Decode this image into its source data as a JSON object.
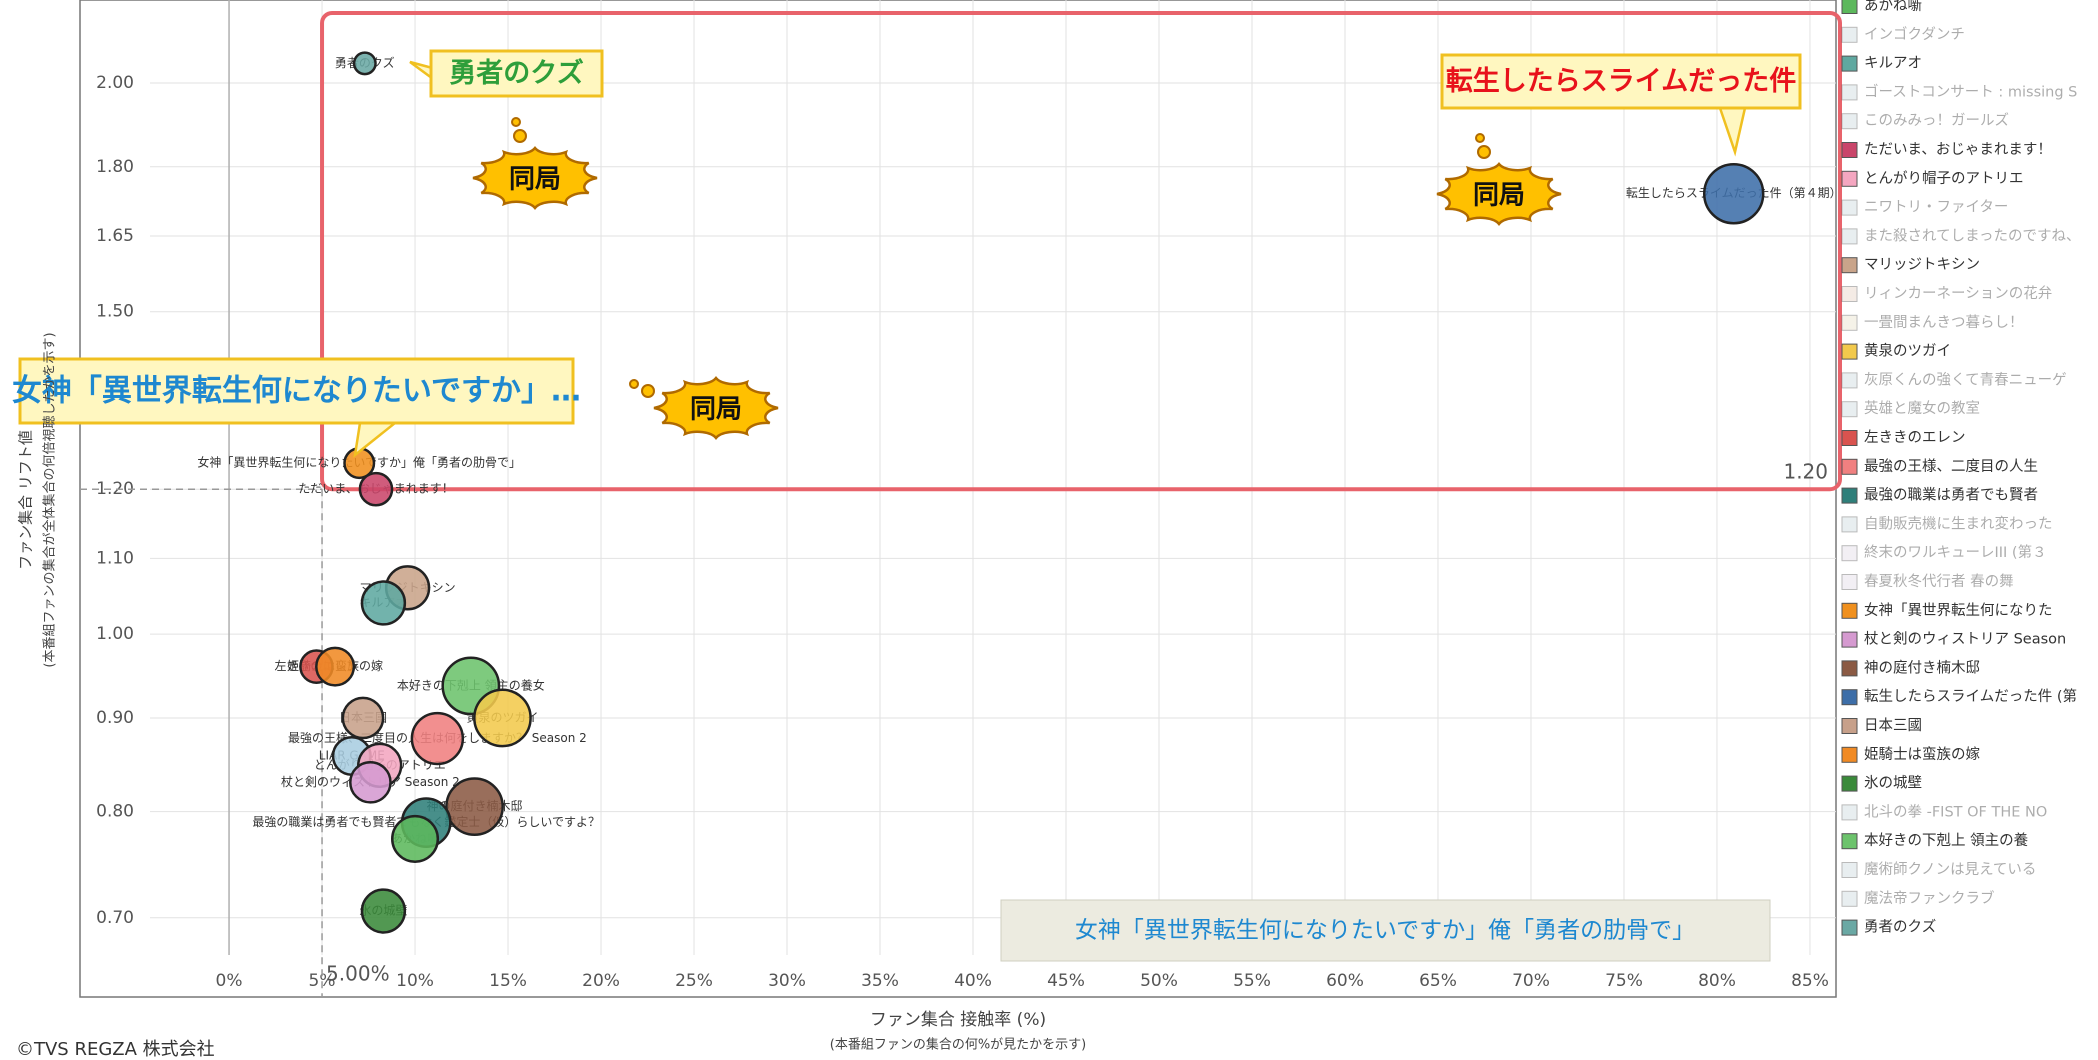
{
  "chart_data": {
    "type": "bubble",
    "x_label": "ファン集合 接触率 (%)",
    "x_sublabel": "(本番組ファンの集合の何%が見たかを示す)",
    "y_label": "ファン集合 リフト値",
    "y_sublabel": "(本番組ファンの集合が全体集合の何倍視聴したかを示す)",
    "footer": "©TVS REGZA 株式会社",
    "log_y": true,
    "grid": true,
    "xlim": [
      -4.25,
      86.4
    ],
    "ylim": [
      0.668,
      2.22
    ],
    "xticks": [
      {
        "value": 0,
        "label": "0%"
      },
      {
        "value": 5,
        "label": "5%"
      },
      {
        "value": 10,
        "label": "10%"
      },
      {
        "value": 15,
        "label": "15%"
      },
      {
        "value": 20,
        "label": "20%"
      },
      {
        "value": 25,
        "label": "25%"
      },
      {
        "value": 30,
        "label": "30%"
      },
      {
        "value": 35,
        "label": "35%"
      },
      {
        "value": 40,
        "label": "40%"
      },
      {
        "value": 45,
        "label": "45%"
      },
      {
        "value": 50,
        "label": "50%"
      },
      {
        "value": 55,
        "label": "55%"
      },
      {
        "value": 60,
        "label": "60%"
      },
      {
        "value": 65,
        "label": "65%"
      },
      {
        "value": 70,
        "label": "70%"
      },
      {
        "value": 75,
        "label": "75%"
      },
      {
        "value": 80,
        "label": "80%"
      },
      {
        "value": 85,
        "label": "85%"
      }
    ],
    "yticks": [
      {
        "value": 2,
        "label": "2.00"
      },
      {
        "value": 1.8,
        "label": "1.80"
      },
      {
        "value": 1.65,
        "label": "1.65"
      },
      {
        "value": 1.5,
        "label": "1.50"
      },
      {
        "value": 1.2,
        "label": "1.20"
      },
      {
        "value": 1.1,
        "label": "1.10"
      },
      {
        "value": 1,
        "label": "1.00"
      },
      {
        "value": 0.9,
        "label": "0.90"
      },
      {
        "value": 0.8,
        "label": "0.80"
      },
      {
        "value": 0.7,
        "label": "0.70"
      }
    ],
    "reference_lines": {
      "x": 5,
      "x_label": "5.00%",
      "y": 1.2,
      "y_label": "1.20"
    },
    "series": [
      {
        "name": "勇者のクズ",
        "color": "#6aa8a4",
        "x": [
          7.3
        ],
        "values": [
          2.05
        ],
        "sizes": [
          8
        ]
      },
      {
        "name": "転生したらスライムだった件（第４期）",
        "color": "#3d6ea8",
        "x": [
          80.9
        ],
        "values": [
          1.74
        ],
        "sizes": [
          22
        ]
      },
      {
        "name": "女神「異世界転生何になりたいですか」俺「勇者の肋骨で」",
        "color": "#f0901e",
        "x": [
          7.0
        ],
        "values": [
          1.24
        ],
        "sizes": [
          11
        ]
      },
      {
        "name": "ただいま、おじゃまれます！",
        "color": "#c9456a",
        "x": [
          7.9
        ],
        "values": [
          1.2
        ],
        "sizes": [
          12
        ]
      },
      {
        "name": "マリッジトキシン",
        "color": "#c9a48a",
        "x": [
          9.6
        ],
        "values": [
          1.06
        ],
        "sizes": [
          16
        ]
      },
      {
        "name": "キルアオ",
        "color": "#5fa8a0",
        "x": [
          8.3
        ],
        "values": [
          1.04
        ],
        "sizes": [
          16
        ]
      },
      {
        "name": "左ききのエレン",
        "color": "#d9534f",
        "x": [
          4.7
        ],
        "values": [
          0.96
        ],
        "sizes": [
          12
        ]
      },
      {
        "name": "姫騎士は蛮族の嫁",
        "color": "#f08a24",
        "x": [
          5.7
        ],
        "values": [
          0.96
        ],
        "sizes": [
          14
        ]
      },
      {
        "name": "本好きの下剋上 領主の養女",
        "color": "#6cc36c",
        "x": [
          13.0
        ],
        "values": [
          0.937
        ],
        "sizes": [
          21
        ]
      },
      {
        "name": "黄泉のツガイ",
        "color": "#f2c94c",
        "x": [
          14.7
        ],
        "values": [
          0.9
        ],
        "sizes": [
          21
        ]
      },
      {
        "name": "日本三國",
        "color": "#c7a08a",
        "x": [
          7.2
        ],
        "values": [
          0.9
        ],
        "sizes": [
          15
        ]
      },
      {
        "name": "最強の王様、二度目の人生は何をしますか？ Season 2",
        "color": "#f08080",
        "x": [
          11.2
        ],
        "values": [
          0.877
        ],
        "sizes": [
          19
        ]
      },
      {
        "name": "LIAR GAME",
        "color": "#a9cde0",
        "x": [
          6.6
        ],
        "values": [
          0.858
        ],
        "sizes": [
          14
        ]
      },
      {
        "name": "とんがり帽子のアトリエ",
        "color": "#f4a6c0",
        "x": [
          8.1
        ],
        "values": [
          0.848
        ],
        "sizes": [
          16
        ]
      },
      {
        "name": "杖と剣のウィストリア Season 2",
        "color": "#d59ad0",
        "x": [
          7.6
        ],
        "values": [
          0.83
        ],
        "sizes": [
          15
        ]
      },
      {
        "name": "神の庭付き楠木邸",
        "color": "#8b5a44",
        "x": [
          13.2
        ],
        "values": [
          0.805
        ],
        "sizes": [
          21
        ]
      },
      {
        "name": "最強の職業は勇者でも賢者でもなく鑑定士（仮）らしいですよ？",
        "color": "#2f7f7a",
        "x": [
          10.6
        ],
        "values": [
          0.789
        ],
        "sizes": [
          18
        ]
      },
      {
        "name": "あかね噺",
        "color": "#5cb85c",
        "x": [
          10.0
        ],
        "values": [
          0.773
        ],
        "sizes": [
          17
        ]
      },
      {
        "name": "氷の城壁",
        "color": "#3a8a3a",
        "x": [
          8.3
        ],
        "values": [
          0.706
        ],
        "sizes": [
          16
        ]
      }
    ],
    "legend": [
      {
        "name": "あかね噺",
        "color": "#5cb85c",
        "faded": false
      },
      {
        "name": "インゴクダンチ",
        "color": "#c8d6da",
        "faded": true
      },
      {
        "name": "キルアオ",
        "color": "#5fa8a0",
        "faded": false
      },
      {
        "name": "ゴーストコンサート : missing S",
        "color": "#c8d6da",
        "faded": true
      },
      {
        "name": "このみみっ！ガールズ",
        "color": "#c8d6da",
        "faded": true
      },
      {
        "name": "ただいま、おじゃまれます！",
        "color": "#c9456a",
        "faded": false
      },
      {
        "name": "とんがり帽子のアトリエ",
        "color": "#f4a6c0",
        "faded": false
      },
      {
        "name": "ニワトリ・ファイター",
        "color": "#c8d6da",
        "faded": true
      },
      {
        "name": "また殺されてしまったのですね、",
        "color": "#c8d6da",
        "faded": true
      },
      {
        "name": "マリッジトキシン",
        "color": "#c9a48a",
        "faded": false
      },
      {
        "name": "リィンカーネーションの花弁",
        "color": "#e6cfc0",
        "faded": true
      },
      {
        "name": "一畳間まんきつ暮らし！",
        "color": "#e8e0c8",
        "faded": true
      },
      {
        "name": "黄泉のツガイ",
        "color": "#f2c94c",
        "faded": false
      },
      {
        "name": "灰原くんの強くて青春ニューゲ",
        "color": "#c8d6da",
        "faded": true
      },
      {
        "name": "英雄と魔女の教室",
        "color": "#c8d6da",
        "faded": true
      },
      {
        "name": "左ききのエレン",
        "color": "#d9534f",
        "faded": false
      },
      {
        "name": "最強の王様、二度目の人生",
        "color": "#f08080",
        "faded": false
      },
      {
        "name": "最強の職業は勇者でも賢者",
        "color": "#2f7f7a",
        "faded": false
      },
      {
        "name": "自動販売機に生まれ変わった",
        "color": "#c8d6da",
        "faded": true
      },
      {
        "name": "終末のワルキューレIII (第３",
        "color": "#e0d8e6",
        "faded": true
      },
      {
        "name": "春夏秋冬代行者 春の舞",
        "color": "#e0d8e6",
        "faded": true
      },
      {
        "name": "女神「異世界転生何になりた",
        "color": "#f0901e",
        "faded": false
      },
      {
        "name": "杖と剣のウィストリア Season",
        "color": "#d59ad0",
        "faded": false
      },
      {
        "name": "神の庭付き楠木邸",
        "color": "#8b5a44",
        "faded": false
      },
      {
        "name": "転生したらスライムだった件 (第",
        "color": "#3d6ea8",
        "faded": false
      },
      {
        "name": "日本三國",
        "color": "#c7a08a",
        "faded": false
      },
      {
        "name": "姫騎士は蛮族の嫁",
        "color": "#f08a24",
        "faded": false
      },
      {
        "name": "氷の城壁",
        "color": "#3a8a3a",
        "faded": false
      },
      {
        "name": "北斗の拳 -FIST OF THE NO",
        "color": "#c8d6da",
        "faded": true
      },
      {
        "name": "本好きの下剋上 領主の養",
        "color": "#6cc36c",
        "faded": false
      },
      {
        "name": "魔術師クノンは見えている",
        "color": "#c8d6da",
        "faded": true
      },
      {
        "name": "魔法帝ファンクラブ",
        "color": "#c8d6da",
        "faded": true
      },
      {
        "name": "勇者のクズ",
        "color": "#6aa8a4",
        "faded": false
      }
    ],
    "callouts": [
      {
        "text": "勇者のクズ",
        "color": "#2e9e3a"
      },
      {
        "text": "転生したらスライムだった件",
        "color": "#e8121b"
      },
      {
        "text": "女神「異世界転生何になりたいですか」…",
        "color": "#1e88d0"
      }
    ],
    "clouds": [
      "同局",
      "同局",
      "同局"
    ],
    "note_box": "女神「異世界転生何になりたいですか」俺「勇者の肋骨で」"
  }
}
